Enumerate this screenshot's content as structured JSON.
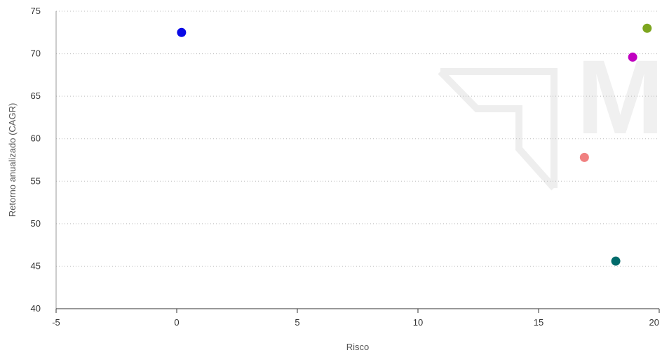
{
  "chart_data": {
    "type": "scatter",
    "title": "",
    "xlabel": "Risco",
    "ylabel": "Retorno anualizado (CAGR)",
    "xlim": [
      -5,
      20
    ],
    "ylim": [
      40,
      75
    ],
    "x_ticks": [
      -5,
      0,
      5,
      10,
      15,
      20
    ],
    "y_ticks": [
      40,
      45,
      50,
      55,
      60,
      65,
      70,
      75
    ],
    "grid": "horizontal-dotted",
    "legend": "none",
    "points": [
      {
        "x": 0.2,
        "y": 72.5,
        "color": "#0a0ae6"
      },
      {
        "x": 16.9,
        "y": 57.8,
        "color": "#f08080"
      },
      {
        "x": 18.2,
        "y": 45.6,
        "color": "#006b6b"
      },
      {
        "x": 18.9,
        "y": 69.6,
        "color": "#c000c0"
      },
      {
        "x": 19.5,
        "y": 73.0,
        "color": "#7da51f"
      }
    ]
  },
  "watermark": {
    "icon": "watermark-logo-icon",
    "letters": "MR",
    "color": "#f0f0f0"
  }
}
